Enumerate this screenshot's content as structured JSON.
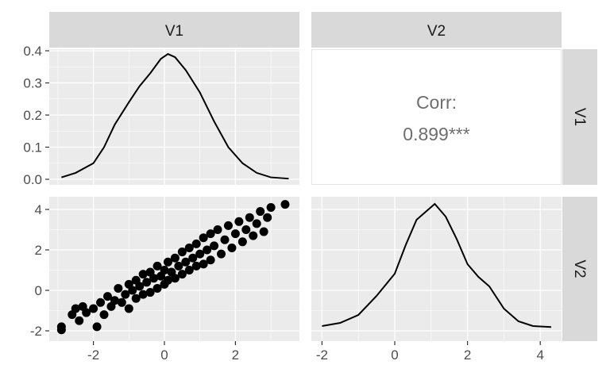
{
  "chart_data": {
    "type": "scatter",
    "title": "",
    "strips": {
      "top": [
        "V1",
        "V2"
      ],
      "right": [
        "V1",
        "V2"
      ]
    },
    "corr": {
      "label": "Corr:",
      "value": "0.899***"
    },
    "v1_ticks": [
      "-2",
      "0",
      "2"
    ],
    "v1_tick_values": [
      -2,
      0,
      2
    ],
    "v2_ticks": [
      "-2",
      "0",
      "2",
      "4"
    ],
    "v2_tick_values": [
      -2,
      0,
      2,
      4
    ],
    "density_ticks": [
      "0.0",
      "0.1",
      "0.2",
      "0.3",
      "0.4"
    ],
    "density_tick_values": [
      0,
      0.1,
      0.2,
      0.3,
      0.4
    ],
    "density_v1": [
      [
        -2.9,
        0.006
      ],
      [
        -2.5,
        0.02
      ],
      [
        -2,
        0.05
      ],
      [
        -1.7,
        0.1
      ],
      [
        -1.4,
        0.17
      ],
      [
        -1,
        0.24
      ],
      [
        -0.7,
        0.29
      ],
      [
        -0.4,
        0.33
      ],
      [
        -0.1,
        0.375
      ],
      [
        0.1,
        0.39
      ],
      [
        0.3,
        0.38
      ],
      [
        0.6,
        0.34
      ],
      [
        1,
        0.27
      ],
      [
        1.4,
        0.18
      ],
      [
        1.8,
        0.1
      ],
      [
        2.2,
        0.05
      ],
      [
        2.6,
        0.02
      ],
      [
        3,
        0.006
      ],
      [
        3.5,
        0.002
      ]
    ],
    "density_v2": [
      [
        -2,
        0.005
      ],
      [
        -1.5,
        0.015
      ],
      [
        -1,
        0.04
      ],
      [
        -0.5,
        0.1
      ],
      [
        0,
        0.17
      ],
      [
        0.3,
        0.26
      ],
      [
        0.6,
        0.34
      ],
      [
        0.9,
        0.37
      ],
      [
        1.1,
        0.39
      ],
      [
        1.4,
        0.35
      ],
      [
        1.7,
        0.28
      ],
      [
        2,
        0.2
      ],
      [
        2.3,
        0.16
      ],
      [
        2.6,
        0.13
      ],
      [
        3,
        0.06
      ],
      [
        3.4,
        0.02
      ],
      [
        3.8,
        0.005
      ],
      [
        4.3,
        0.002
      ]
    ],
    "points": [
      [
        -2.9,
        -1.8
      ],
      [
        -2.9,
        -1.95
      ],
      [
        -2.6,
        -1.2
      ],
      [
        -2.5,
        -0.9
      ],
      [
        -2.4,
        -1.5
      ],
      [
        -2.3,
        -0.8
      ],
      [
        -2.2,
        -1.1
      ],
      [
        -2.0,
        -0.9
      ],
      [
        -1.9,
        -1.8
      ],
      [
        -1.8,
        -0.6
      ],
      [
        -1.7,
        -1.2
      ],
      [
        -1.6,
        -0.3
      ],
      [
        -1.5,
        -0.8
      ],
      [
        -1.4,
        -0.5
      ],
      [
        -1.3,
        0.1
      ],
      [
        -1.2,
        -0.6
      ],
      [
        -1.1,
        -0.2
      ],
      [
        -1.0,
        0.3
      ],
      [
        -1.0,
        -0.9
      ],
      [
        -0.9,
        0.0
      ],
      [
        -0.8,
        0.5
      ],
      [
        -0.8,
        -0.4
      ],
      [
        -0.7,
        0.2
      ],
      [
        -0.6,
        0.8
      ],
      [
        -0.6,
        -0.2
      ],
      [
        -0.5,
        0.4
      ],
      [
        -0.4,
        0.9
      ],
      [
        -0.4,
        -0.1
      ],
      [
        -0.3,
        0.6
      ],
      [
        -0.2,
        1.2
      ],
      [
        -0.2,
        0.1
      ],
      [
        -0.1,
        0.7
      ],
      [
        0.0,
        1.0
      ],
      [
        0.0,
        0.3
      ],
      [
        0.1,
        1.4
      ],
      [
        0.1,
        0.5
      ],
      [
        0.2,
        0.9
      ],
      [
        0.3,
        1.6
      ],
      [
        0.3,
        0.6
      ],
      [
        0.4,
        1.2
      ],
      [
        0.5,
        1.9
      ],
      [
        0.5,
        0.8
      ],
      [
        0.6,
        1.4
      ],
      [
        0.7,
        2.1
      ],
      [
        0.7,
        1.0
      ],
      [
        0.8,
        1.6
      ],
      [
        0.9,
        2.3
      ],
      [
        0.9,
        1.2
      ],
      [
        1.0,
        1.8
      ],
      [
        1.1,
        2.6
      ],
      [
        1.1,
        1.3
      ],
      [
        1.2,
        2.0
      ],
      [
        1.3,
        2.8
      ],
      [
        1.3,
        1.5
      ],
      [
        1.4,
        2.2
      ],
      [
        1.5,
        3.0
      ],
      [
        1.6,
        1.8
      ],
      [
        1.7,
        2.5
      ],
      [
        1.8,
        3.2
      ],
      [
        1.9,
        2.1
      ],
      [
        2.0,
        2.8
      ],
      [
        2.1,
        3.4
      ],
      [
        2.2,
        2.4
      ],
      [
        2.3,
        3.0
      ],
      [
        2.4,
        3.6
      ],
      [
        2.5,
        2.7
      ],
      [
        2.6,
        3.3
      ],
      [
        2.7,
        3.9
      ],
      [
        2.8,
        2.9
      ],
      [
        2.9,
        3.6
      ],
      [
        3.0,
        4.1
      ],
      [
        3.4,
        4.25
      ]
    ]
  }
}
